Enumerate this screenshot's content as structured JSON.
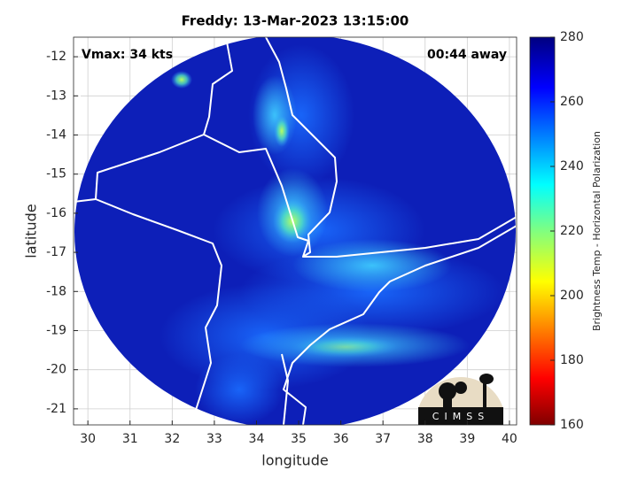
{
  "chart_data": {
    "type": "map",
    "title": "Freddy: 13-Mar-2023 13:15:00",
    "annotations": [
      "Vmax: 34 kts",
      "00:44 away"
    ],
    "xlabel": "longitude",
    "ylabel": "latitude",
    "xlim": [
      29.66,
      40.17
    ],
    "ylim": [
      -21.41,
      -11.5
    ],
    "xticks": [
      30,
      31,
      32,
      33,
      34,
      35,
      36,
      37,
      38,
      39,
      40
    ],
    "yticks": [
      -12,
      -13,
      -14,
      -15,
      -16,
      -17,
      -18,
      -19,
      -20,
      -21
    ],
    "grid": true,
    "colorbar": {
      "label": "Brightness Temp - Horizontal Polarization",
      "lim": [
        160,
        280
      ],
      "ticks": [
        160,
        180,
        200,
        220,
        240,
        260,
        280
      ]
    },
    "logo": "CIMSS"
  }
}
